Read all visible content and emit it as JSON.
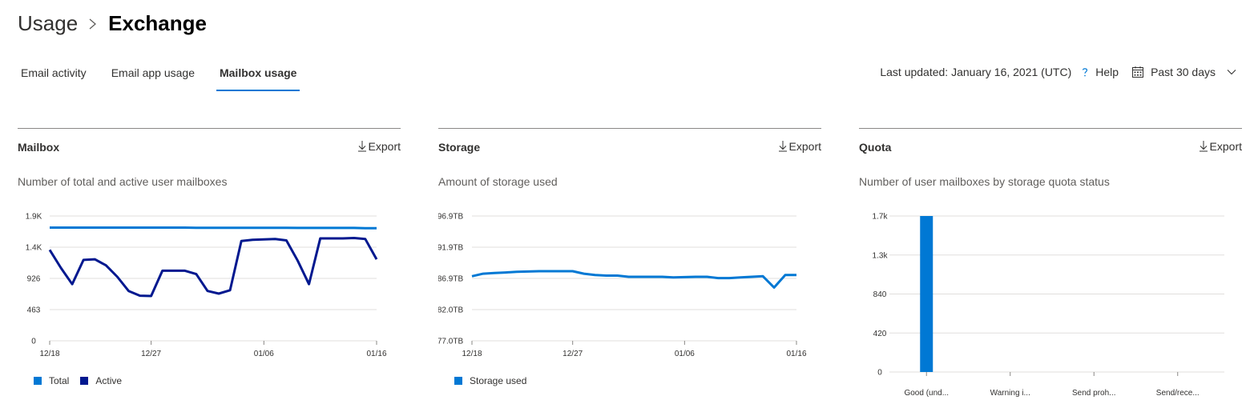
{
  "breadcrumb": {
    "root": "Usage",
    "current": "Exchange"
  },
  "tabs": [
    {
      "label": "Email activity",
      "active": false
    },
    {
      "label": "Email app usage",
      "active": false
    },
    {
      "label": "Mailbox usage",
      "active": true
    }
  ],
  "toolbar": {
    "last_updated": "Last updated: January 16, 2021 (UTC)",
    "help_label": "Help",
    "period": "Past 30 days"
  },
  "colors": {
    "accent": "#0078d4",
    "total": "#0078d4",
    "active": "#00188f",
    "storage": "#0078d4",
    "quota_bar": "#0078d4"
  },
  "cards": {
    "mailbox": {
      "title": "Mailbox",
      "export": "Export",
      "subtitle": "Number of total and active user mailboxes"
    },
    "storage": {
      "title": "Storage",
      "export": "Export",
      "subtitle": "Amount of storage used"
    },
    "quota": {
      "title": "Quota",
      "export": "Export",
      "subtitle": "Number of user mailboxes by storage quota status"
    }
  },
  "chart_data": [
    {
      "type": "line",
      "y_ticks": [
        "1.9K",
        "1.4K",
        "926",
        "463",
        "0"
      ],
      "ylim": [
        0,
        1852
      ],
      "x_ticks": [
        {
          "label": "12/18",
          "index": 0
        },
        {
          "label": "12/27",
          "index": 9
        },
        {
          "label": "01/06",
          "index": 19
        },
        {
          "label": "01/16",
          "index": 29
        }
      ],
      "series": [
        {
          "name": "Total",
          "values": [
            1680,
            1680,
            1680,
            1680,
            1680,
            1680,
            1680,
            1680,
            1680,
            1680,
            1680,
            1680,
            1680,
            1677,
            1677,
            1677,
            1677,
            1677,
            1677,
            1677,
            1677,
            1677,
            1675,
            1675,
            1675,
            1675,
            1675,
            1675,
            1672,
            1672
          ]
        },
        {
          "name": "Active",
          "values": [
            1350,
            1080,
            840,
            1200,
            1210,
            1120,
            950,
            740,
            670,
            665,
            1040,
            1040,
            1040,
            990,
            740,
            700,
            750,
            1480,
            1500,
            1505,
            1510,
            1490,
            1190,
            840,
            1520,
            1520,
            1520,
            1525,
            1510,
            1210
          ]
        }
      ]
    },
    {
      "type": "line",
      "y_ticks": [
        "96.9TB",
        "91.9TB",
        "86.9TB",
        "82.0TB",
        "77.0TB"
      ],
      "ylim": [
        77.0,
        96.9
      ],
      "x_ticks": [
        {
          "label": "12/18",
          "index": 0
        },
        {
          "label": "12/27",
          "index": 9
        },
        {
          "label": "01/06",
          "index": 19
        },
        {
          "label": "01/16",
          "index": 29
        }
      ],
      "series": [
        {
          "name": "Storage used",
          "values": [
            87.3,
            87.7,
            87.8,
            87.9,
            88.0,
            88.05,
            88.1,
            88.1,
            88.1,
            88.1,
            87.7,
            87.5,
            87.4,
            87.4,
            87.2,
            87.2,
            87.2,
            87.2,
            87.1,
            87.15,
            87.2,
            87.2,
            87.0,
            87.0,
            87.1,
            87.2,
            87.3,
            85.5,
            87.5,
            87.5
          ]
        }
      ]
    },
    {
      "type": "bar",
      "y_ticks": [
        "1.7k",
        "1.3k",
        "840",
        "420",
        "0"
      ],
      "ylim": [
        0,
        1680
      ],
      "categories": [
        "Good (und...",
        "Warning i...",
        "Send proh...",
        "Send/rece..."
      ],
      "values": [
        1680,
        0,
        0,
        0
      ]
    }
  ]
}
